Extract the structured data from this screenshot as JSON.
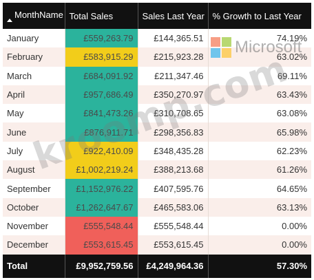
{
  "table": {
    "columns": [
      "MonthName",
      "Total Sales",
      "Sales Last Year",
      "% Growth to Last Year"
    ],
    "rows": [
      {
        "month": "January",
        "total_sales": "£559,263.79",
        "sales_last_year": "£144,365.51",
        "growth": "74.19%",
        "highlight": "#2bb39c"
      },
      {
        "month": "February",
        "total_sales": "£583,915.29",
        "sales_last_year": "£215,923.28",
        "growth": "63.02%",
        "highlight": "#f2cd1a"
      },
      {
        "month": "March",
        "total_sales": "£684,091.92",
        "sales_last_year": "£211,347.46",
        "growth": "69.11%",
        "highlight": "#2bb39c"
      },
      {
        "month": "April",
        "total_sales": "£957,686.49",
        "sales_last_year": "£350,270.97",
        "growth": "63.43%",
        "highlight": "#2bb39c"
      },
      {
        "month": "May",
        "total_sales": "£841,473.26",
        "sales_last_year": "£310,708.65",
        "growth": "63.08%",
        "highlight": "#2bb39c"
      },
      {
        "month": "June",
        "total_sales": "£876,911.71",
        "sales_last_year": "£298,356.83",
        "growth": "65.98%",
        "highlight": "#2bb39c"
      },
      {
        "month": "July",
        "total_sales": "£922,410.09",
        "sales_last_year": "£348,435.28",
        "growth": "62.23%",
        "highlight": "#f2cd1a"
      },
      {
        "month": "August",
        "total_sales": "£1,002,219.24",
        "sales_last_year": "£388,213.68",
        "growth": "61.26%",
        "highlight": "#f2cd1a"
      },
      {
        "month": "September",
        "total_sales": "£1,152,976.22",
        "sales_last_year": "£407,595.76",
        "growth": "64.65%",
        "highlight": "#2bb39c"
      },
      {
        "month": "October",
        "total_sales": "£1,262,647.67",
        "sales_last_year": "£465,583.06",
        "growth": "63.13%",
        "highlight": "#2bb39c"
      },
      {
        "month": "November",
        "total_sales": "£555,548.44",
        "sales_last_year": "£555,548.44",
        "growth": "0.00%",
        "highlight": "#f0605a"
      },
      {
        "month": "December",
        "total_sales": "£553,615.45",
        "sales_last_year": "£553,615.45",
        "growth": "0.00%",
        "highlight": "#f0605a"
      }
    ],
    "total": {
      "label": "Total",
      "total_sales": "£9,952,759.56",
      "sales_last_year": "£4,249,964.36",
      "growth": "57.30%"
    },
    "sort": {
      "column": "MonthName",
      "direction": "ascending",
      "icon": "sort-ascending-icon"
    }
  },
  "watermark": {
    "text": "kroomp.com",
    "logo_text": "Microsoft",
    "logo_colors": [
      "#f25022",
      "#7fba00",
      "#00a4ef",
      "#ffb900"
    ]
  }
}
